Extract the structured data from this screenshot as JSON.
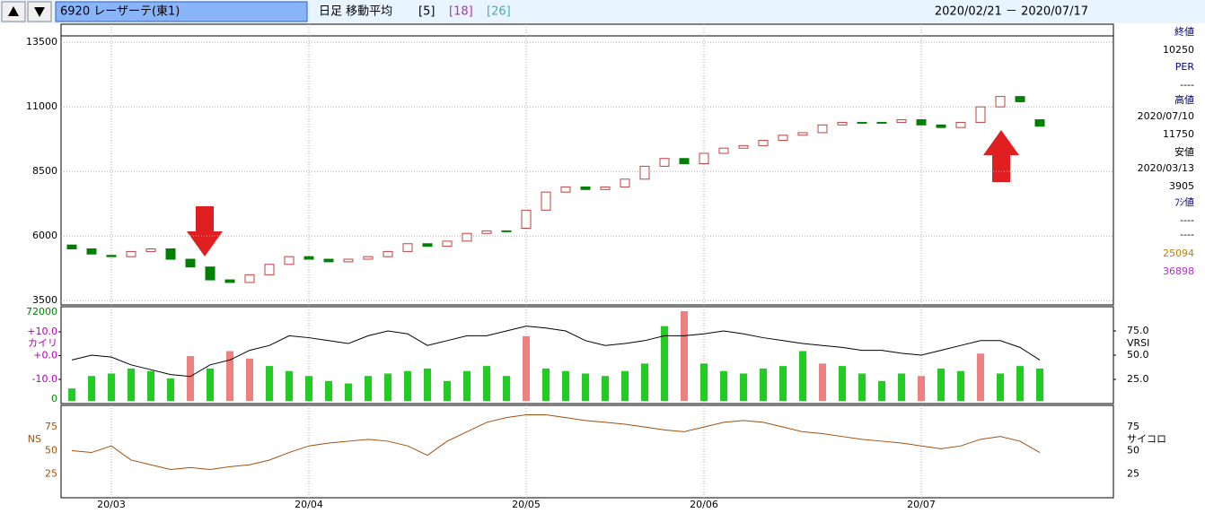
{
  "header": {
    "code": "6920 レーザーテ(東1)",
    "mode": "日足 移動平均",
    "ma": [
      "[5]",
      "[18]",
      "[26]"
    ],
    "range": "2020/02/21 － 2020/07/17"
  },
  "info": [
    "終値",
    "10250",
    "PER",
    "----",
    "高値",
    "2020/07/10",
    "11750",
    "安値",
    "2020/03/13",
    "3905",
    "ﾌｼ値",
    "----",
    "----",
    "25094",
    "36898"
  ],
  "chart_data": {
    "type": "candlestick",
    "categories": [
      null,
      null,
      "20/03",
      null,
      null,
      null,
      null,
      null,
      null,
      null,
      null,
      null,
      "20/04",
      null,
      null,
      null,
      null,
      null,
      null,
      null,
      null,
      null,
      null,
      "20/05",
      null,
      null,
      null,
      null,
      null,
      null,
      null,
      null,
      "20/06",
      null,
      null,
      null,
      null,
      null,
      null,
      null,
      null,
      null,
      null,
      "20/07",
      null,
      null,
      null,
      null,
      null,
      null
    ],
    "open": [
      5650,
      5500,
      5250,
      5200,
      5400,
      5500,
      5100,
      4800,
      4300,
      4200,
      4500,
      4900,
      5200,
      5100,
      5000,
      5100,
      5200,
      5400,
      5700,
      5600,
      5800,
      6100,
      6200,
      6300,
      7000,
      7700,
      7900,
      7800,
      7900,
      8200,
      8700,
      9000,
      8800,
      9200,
      9400,
      9500,
      9700,
      9900,
      10000,
      10300,
      10400,
      10400,
      10400,
      10500,
      10300,
      10200,
      10400,
      11000,
      11400,
      10500
    ],
    "close": [
      5500,
      5300,
      5200,
      5400,
      5500,
      5100,
      4800,
      4300,
      4200,
      4500,
      4900,
      5200,
      5100,
      5000,
      5100,
      5200,
      5400,
      5700,
      5600,
      5800,
      6100,
      6200,
      6200,
      7000,
      7700,
      7900,
      7800,
      7900,
      8200,
      8700,
      9000,
      8800,
      9200,
      9400,
      9500,
      9700,
      9900,
      10000,
      10300,
      10400,
      10400,
      10400,
      10500,
      10300,
      10200,
      10400,
      11000,
      11400,
      11200,
      10250
    ],
    "up_color": "#c04040",
    "down_color": "#008000",
    "ylim": [
      3330,
      14200
    ],
    "yticks": [
      3500,
      6000,
      8500,
      11000,
      13500
    ],
    "grid": true,
    "volume": {
      "values": [
        10000,
        20000,
        22000,
        26000,
        24000,
        18000,
        36000,
        26000,
        40000,
        34000,
        28000,
        24000,
        20000,
        16000,
        14000,
        20000,
        22000,
        24000,
        26000,
        16000,
        24000,
        28000,
        20000,
        52000,
        26000,
        24000,
        22000,
        20000,
        24000,
        30000,
        60000,
        72000,
        30000,
        24000,
        22000,
        26000,
        28000,
        40000,
        30000,
        28000,
        22000,
        16000,
        22000,
        20000,
        26000,
        24000,
        38000,
        22000,
        28000,
        26000
      ],
      "highlight": [
        6,
        8,
        9,
        23,
        31,
        38,
        43,
        46
      ],
      "color": "#22cc22",
      "highlight_color": "#f08080",
      "ylim": [
        -2160,
        75600
      ],
      "yticks": [
        0,
        72000
      ]
    },
    "kairi": {
      "label": "カイリ",
      "ylim": [
        -20.2,
        20.6
      ],
      "yticks": [
        {
          "value": 10,
          "label": "+10.0"
        },
        {
          "value": 0,
          "label": "+0.0"
        },
        {
          "value": -10,
          "label": "-10.0"
        }
      ]
    },
    "vrsi": {
      "name": "VRSI",
      "color": "#000000",
      "ylim": [
        0,
        100
      ],
      "yticks": [
        {
          "value": 75,
          "label": "75.0"
        },
        {
          "value": 50,
          "label": "50.0"
        },
        {
          "value": 25,
          "label": "25.0"
        }
      ],
      "values": [
        45,
        50,
        48,
        40,
        35,
        30,
        28,
        40,
        45,
        55,
        60,
        70,
        68,
        65,
        62,
        70,
        75,
        72,
        60,
        65,
        70,
        70,
        75,
        80,
        78,
        75,
        65,
        60,
        62,
        65,
        70,
        70,
        72,
        75,
        72,
        68,
        65,
        62,
        60,
        58,
        55,
        55,
        52,
        50,
        55,
        60,
        65,
        65,
        58,
        45
      ]
    },
    "ns": {
      "name": "NS",
      "right_label": "サイコロ",
      "color": "#a05010",
      "ylim": [
        0,
        98
      ],
      "yticks": [
        75,
        50,
        25
      ],
      "values": [
        50,
        48,
        55,
        40,
        35,
        30,
        32,
        30,
        33,
        35,
        40,
        48,
        55,
        58,
        60,
        62,
        60,
        55,
        45,
        60,
        70,
        80,
        85,
        88,
        88,
        85,
        82,
        80,
        78,
        75,
        72,
        70,
        75,
        80,
        82,
        80,
        75,
        70,
        68,
        65,
        62,
        60,
        58,
        55,
        52,
        55,
        62,
        65,
        60,
        48
      ]
    }
  }
}
